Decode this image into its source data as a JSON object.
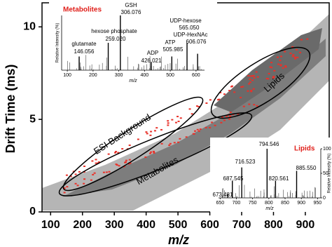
{
  "chart_data": [
    {
      "type": "density",
      "xlabel": "m/z",
      "ylabel": "Drift Time (ms)",
      "xlim": [
        73,
        975
      ],
      "ylim": [
        0,
        11.3
      ],
      "xticks": [
        100,
        200,
        300,
        400,
        500,
        600,
        700,
        800,
        900
      ],
      "yticks": [
        0,
        5,
        10
      ],
      "annotations": [
        "ESI Background",
        "Metabolites",
        "Lipids"
      ]
    },
    {
      "type": "stem",
      "title": "Metabolites",
      "title_color": "#e0201b",
      "xlabel": "m/z",
      "ylabel": "Relative Intensity (%)",
      "xlim": [
        78,
        633
      ],
      "ylim": [
        0,
        100
      ],
      "xticks": [
        100,
        200,
        300,
        400,
        500,
        600
      ],
      "x": [
        146.056,
        259.02,
        306.076,
        426.021,
        505.985,
        565.05,
        606.076
      ],
      "x_labels": [
        "146.056",
        "259.020",
        "306.076",
        "426.021",
        "505.985",
        "565.050",
        "606.076"
      ],
      "peak_names": [
        "glutamate",
        "hexose phosphate",
        "GSH",
        "ADP",
        "ATP",
        "UDP-hexose",
        "UDP-HexNAc"
      ],
      "values": [
        25,
        50,
        100,
        15,
        25,
        50,
        30
      ]
    },
    {
      "type": "stem",
      "title": "Lipids",
      "title_color": "#e0201b",
      "xlabel": "m/z",
      "ylabel": "Relative Intensity (%)",
      "xlim": [
        645,
        960
      ],
      "ylim": [
        0,
        100
      ],
      "xticks": [
        650,
        700,
        750,
        800,
        850,
        900,
        950
      ],
      "yticks": [
        0,
        50,
        100
      ],
      "x": [
        673.481,
        687.545,
        716.523,
        794.546,
        820.561,
        885.55
      ],
      "x_labels": [
        "673.481",
        "687.545",
        "716.523",
        "794.546",
        "820.561",
        "885.550"
      ],
      "values": [
        8,
        35,
        62,
        100,
        35,
        55
      ]
    }
  ]
}
